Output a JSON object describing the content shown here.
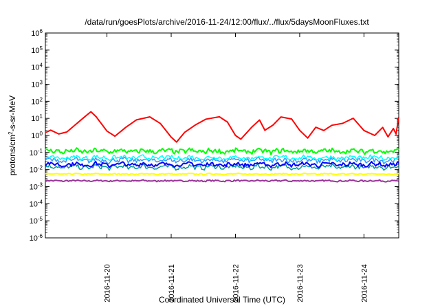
{
  "chart_data": {
    "type": "line",
    "title": "/data/run/goesPlots/archive/2016-11-24/12:00/flux/../flux/5daysMoonFluxes.txt",
    "xlabel": "Coordinated Universal Time (UTC)",
    "ylabel": {
      "prefix": "protons/cm",
      "sup": "2",
      "suffix": "-s-sr-MeV"
    },
    "y_scale": "log",
    "ylim": [
      1e-06,
      1000000.0
    ],
    "y_ticks": [
      {
        "value": 1e-06,
        "base": "10",
        "exp": "-6"
      },
      {
        "value": 1e-05,
        "base": "10",
        "exp": "-5"
      },
      {
        "value": 0.0001,
        "base": "10",
        "exp": "-4"
      },
      {
        "value": 0.001,
        "base": "10",
        "exp": "-3"
      },
      {
        "value": 0.01,
        "base": "10",
        "exp": "-2"
      },
      {
        "value": 0.1,
        "base": "10",
        "exp": "-1"
      },
      {
        "value": 1.0,
        "base": "10",
        "exp": "0"
      },
      {
        "value": 10.0,
        "base": "10",
        "exp": "1"
      },
      {
        "value": 100.0,
        "base": "10",
        "exp": "2"
      },
      {
        "value": 1000.0,
        "base": "10",
        "exp": "3"
      },
      {
        "value": 10000.0,
        "base": "10",
        "exp": "4"
      },
      {
        "value": 100000.0,
        "base": "10",
        "exp": "5"
      },
      {
        "value": 1000000.0,
        "base": "10",
        "exp": "6"
      }
    ],
    "xlim": [
      "2016-11-19T01:00",
      "2016-11-24T13:00"
    ],
    "x_ticks": [
      "2016-11-20",
      "2016-11-21",
      "2016-11-22",
      "2016-11-23",
      "2016-11-24"
    ],
    "grid": false,
    "series": [
      {
        "color": "#ff0000",
        "stroke": 2,
        "baseline": 1.6,
        "amplitude": 0,
        "noise": 0.05,
        "points": [
          [
            "2016-11-19T01:00",
            1.5
          ],
          [
            "2016-11-19T03:00",
            2.0
          ],
          [
            "2016-11-19T06:00",
            1.2
          ],
          [
            "2016-11-19T09:00",
            1.6
          ],
          [
            "2016-11-19T12:00",
            4.0
          ],
          [
            "2016-11-19T15:00",
            10
          ],
          [
            "2016-11-19T18:00",
            25
          ],
          [
            "2016-11-19T20:00",
            12
          ],
          [
            "2016-11-20T00:00",
            1.8
          ],
          [
            "2016-11-20T03:00",
            0.9
          ],
          [
            "2016-11-20T07:00",
            3.0
          ],
          [
            "2016-11-20T11:00",
            8.0
          ],
          [
            "2016-11-20T16:00",
            12
          ],
          [
            "2016-11-20T20:00",
            5.0
          ],
          [
            "2016-11-21T00:00",
            0.8
          ],
          [
            "2016-11-21T02:00",
            0.4
          ],
          [
            "2016-11-21T05:00",
            1.5
          ],
          [
            "2016-11-21T09:00",
            4.0
          ],
          [
            "2016-11-21T13:00",
            9.0
          ],
          [
            "2016-11-21T18:00",
            12
          ],
          [
            "2016-11-21T21:00",
            6.0
          ],
          [
            "2016-11-22T00:00",
            1.0
          ],
          [
            "2016-11-22T02:00",
            0.6
          ],
          [
            "2016-11-22T06:00",
            3.0
          ],
          [
            "2016-11-22T09:00",
            8.0
          ],
          [
            "2016-11-22T11:00",
            2.0
          ],
          [
            "2016-11-22T14:00",
            4.0
          ],
          [
            "2016-11-22T17:00",
            12
          ],
          [
            "2016-11-22T21:00",
            9.0
          ],
          [
            "2016-11-23T00:00",
            2.0
          ],
          [
            "2016-11-23T03:00",
            0.7
          ],
          [
            "2016-11-23T06:00",
            3.0
          ],
          [
            "2016-11-23T09:00",
            2.0
          ],
          [
            "2016-11-23T12:00",
            4.0
          ],
          [
            "2016-11-23T16:00",
            5.0
          ],
          [
            "2016-11-23T20:00",
            10
          ],
          [
            "2016-11-24T00:00",
            2.0
          ],
          [
            "2016-11-24T04:00",
            1.0
          ],
          [
            "2016-11-24T07:00",
            3.0
          ],
          [
            "2016-11-24T09:00",
            0.8
          ],
          [
            "2016-11-24T11:00",
            2.5
          ],
          [
            "2016-11-24T12:00",
            1.2
          ],
          [
            "2016-11-24T13:00",
            12
          ]
        ]
      },
      {
        "color": "#00ff00",
        "stroke": 2,
        "baseline": 0.12,
        "amplitude": 0.18,
        "noise": 0.12
      },
      {
        "color": "#00ffff",
        "stroke": 1.5,
        "baseline": 0.05,
        "amplitude": 0.18,
        "noise": 0.1
      },
      {
        "color": "#3399ff",
        "stroke": 1.5,
        "baseline": 0.035,
        "amplitude": 0.2,
        "noise": 0.12
      },
      {
        "color": "#0000ff",
        "stroke": 2,
        "baseline": 0.02,
        "amplitude": 0.2,
        "noise": 0.1
      },
      {
        "color": "#009999",
        "stroke": 1.5,
        "baseline": 0.014,
        "amplitude": 0.2,
        "noise": 0.1
      },
      {
        "color": "#ffff00",
        "stroke": 2,
        "baseline": 0.0055,
        "amplitude": 0.05,
        "noise": 0.03
      },
      {
        "color": "#993399",
        "stroke": 2,
        "baseline": 0.0022,
        "amplitude": 0.05,
        "noise": 0.04
      }
    ]
  }
}
